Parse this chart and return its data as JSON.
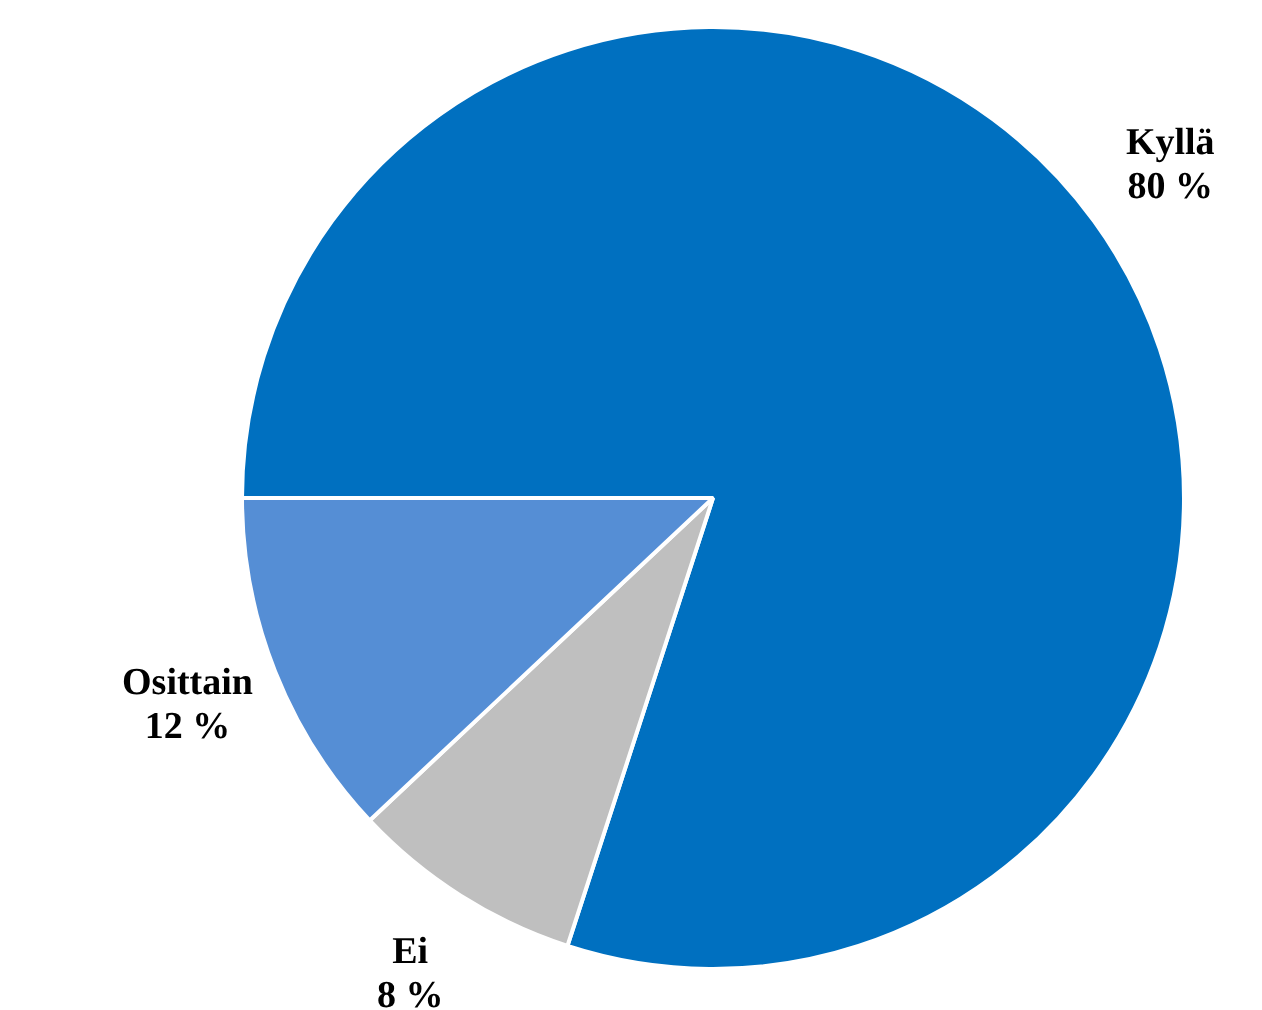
{
  "chart_data": {
    "type": "pie",
    "categories": [
      "Kyllä",
      "Ei",
      "Osittain"
    ],
    "values": [
      80,
      8,
      12
    ],
    "colors": [
      "#0070c0",
      "#bfbfbf",
      "#558ed5"
    ],
    "value_labels": [
      "80 %",
      "8 %",
      "12 %"
    ],
    "legend": false
  }
}
